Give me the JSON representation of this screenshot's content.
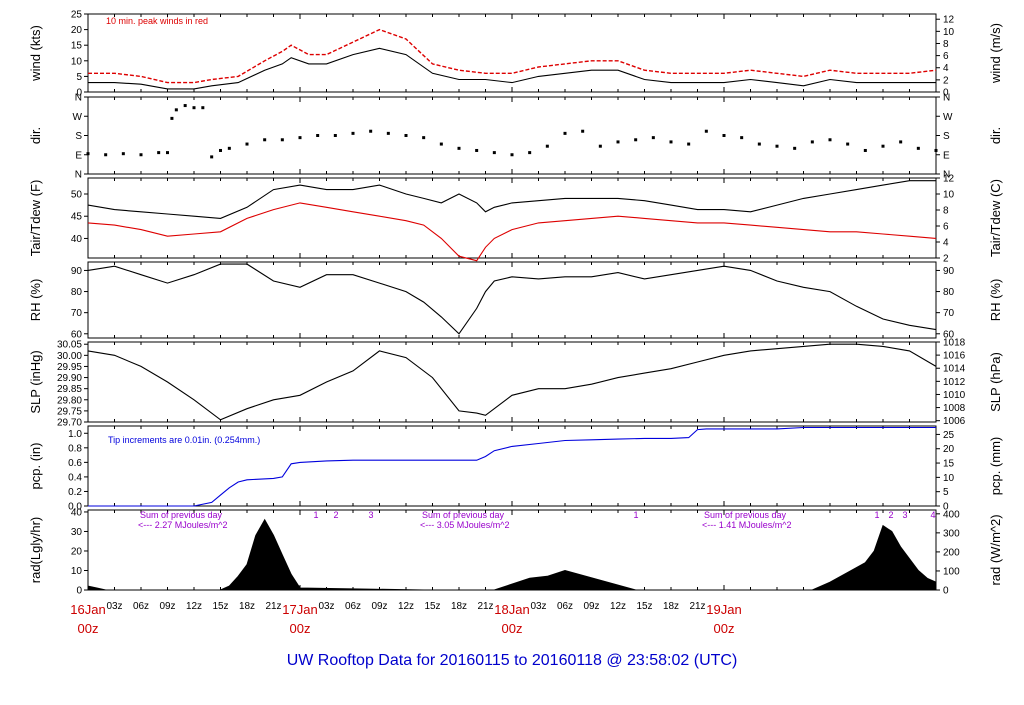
{
  "title": "UW Rooftop Data for 20160115  to  20160118 @ 23:58:02  (UTC)",
  "colors": {
    "black": "#000000",
    "red": "#dd0000",
    "blue": "#0000dd",
    "purple": "#9900cc",
    "footer": "#0000cc"
  },
  "time_axis": {
    "hour_labels": [
      "03z",
      "06z",
      "09z",
      "12z",
      "15z",
      "18z",
      "21z",
      "03z",
      "06z",
      "09z",
      "12z",
      "15z",
      "18z",
      "21z",
      "03z",
      "06z",
      "09z",
      "12z",
      "15z",
      "18z",
      "21z"
    ],
    "day_labels": [
      {
        "date": "16Jan",
        "hour": "00z"
      },
      {
        "date": "17Jan",
        "hour": "00z"
      },
      {
        "date": "18Jan",
        "hour": "00z"
      },
      {
        "date": "19Jan",
        "hour": "00z"
      }
    ]
  },
  "chart_data": [
    {
      "id": "wind",
      "type": "line",
      "ylabel": "wind (kts)",
      "ylabel_right": "wind (m/s)",
      "yticks_left": [
        "0",
        "5",
        "10",
        "15",
        "20",
        "25"
      ],
      "yticks_right": [
        "0",
        "2",
        "4",
        "6",
        "8",
        "10",
        "12"
      ],
      "annotation": "10 min. peak winds in red",
      "series": [
        {
          "color": "red",
          "x": [
            0,
            3,
            6,
            9,
            12,
            14,
            17,
            20,
            22,
            23,
            25,
            27,
            30,
            33,
            36,
            39,
            42,
            45,
            48,
            51,
            54,
            57,
            60,
            63,
            66,
            69,
            72,
            75,
            78,
            81,
            84,
            87,
            90,
            93,
            96
          ],
          "values": [
            6,
            6,
            5,
            3,
            3,
            4,
            5,
            10,
            13,
            15,
            12,
            12,
            16,
            20,
            17,
            9,
            7,
            6,
            6,
            8,
            9,
            10,
            10,
            7,
            6,
            6,
            6,
            7,
            6,
            5,
            7,
            6,
            6,
            6,
            7
          ]
        },
        {
          "color": "black",
          "x": [
            0,
            3,
            6,
            9,
            12,
            14,
            17,
            20,
            22,
            23,
            25,
            27,
            30,
            33,
            36,
            39,
            42,
            45,
            48,
            51,
            54,
            57,
            60,
            63,
            66,
            69,
            72,
            75,
            78,
            81,
            84,
            87,
            90,
            93,
            96
          ],
          "values": [
            3,
            3,
            2.5,
            1,
            1,
            2,
            3,
            7,
            9,
            11,
            9,
            9,
            12,
            14,
            12,
            6,
            4,
            4,
            3,
            5,
            6,
            7,
            7,
            4,
            3,
            3,
            3,
            4,
            3,
            2,
            4,
            3,
            3,
            3,
            3
          ]
        }
      ]
    },
    {
      "id": "dir",
      "type": "scatter",
      "ylabel": "dir.",
      "ylabel_right": "dir.",
      "yticks_left": [
        "N",
        "E",
        "S",
        "W",
        "N"
      ],
      "yticks_right": [
        "N",
        "E",
        "S",
        "W",
        "N"
      ],
      "degree_range": [
        0,
        360
      ],
      "series": [
        {
          "color": "black",
          "x": [
            0,
            2,
            4,
            6,
            8,
            9,
            9.5,
            10,
            11,
            12,
            13,
            14,
            15,
            16,
            18,
            20,
            22,
            24,
            26,
            28,
            30,
            32,
            34,
            36,
            38,
            40,
            42,
            44,
            46,
            48,
            50,
            52,
            54,
            56,
            58,
            60,
            62,
            64,
            66,
            68,
            70,
            72,
            74,
            76,
            78,
            80,
            82,
            84,
            86,
            88,
            90,
            92,
            94,
            96
          ],
          "values": [
            95,
            90,
            95,
            90,
            100,
            100,
            260,
            300,
            320,
            310,
            310,
            80,
            110,
            120,
            140,
            160,
            160,
            170,
            180,
            180,
            190,
            200,
            190,
            180,
            170,
            140,
            120,
            110,
            100,
            90,
            100,
            130,
            190,
            200,
            130,
            150,
            160,
            170,
            150,
            140,
            200,
            180,
            170,
            140,
            130,
            120,
            150,
            160,
            140,
            110,
            130,
            150,
            120,
            110
          ]
        }
      ]
    },
    {
      "id": "temp",
      "type": "line",
      "ylabel": "Tair/Tdew (F)",
      "ylabel_right": "Tair/Tdew (C)",
      "yticks_left": [
        "40",
        "45",
        "50"
      ],
      "yticks_right": [
        "2",
        "4",
        "6",
        "8",
        "10",
        "12"
      ],
      "series": [
        {
          "color": "black",
          "x": [
            0,
            3,
            6,
            9,
            12,
            15,
            18,
            21,
            24,
            27,
            30,
            33,
            36,
            38,
            40,
            42,
            44,
            45,
            46,
            48,
            51,
            54,
            57,
            60,
            63,
            66,
            69,
            72,
            75,
            78,
            81,
            84,
            87,
            90,
            93,
            96
          ],
          "values": [
            47.5,
            46.5,
            46,
            45.5,
            45,
            44.5,
            47,
            51,
            52,
            51,
            51,
            52,
            50,
            49,
            48,
            50,
            48,
            46,
            47,
            48,
            48.5,
            49,
            49,
            49,
            48.5,
            47.5,
            46.5,
            46.5,
            46,
            47.5,
            49,
            50,
            51,
            52,
            53,
            53
          ]
        },
        {
          "color": "red",
          "x": [
            0,
            3,
            6,
            9,
            12,
            15,
            18,
            21,
            24,
            27,
            30,
            33,
            36,
            38,
            40,
            42,
            44,
            45,
            46,
            48,
            51,
            54,
            57,
            60,
            63,
            66,
            69,
            72,
            75,
            78,
            81,
            84,
            87,
            90,
            93,
            96
          ],
          "values": [
            43.5,
            43,
            42,
            40.5,
            41,
            41.5,
            44.5,
            46.5,
            48,
            47,
            46,
            45,
            44,
            43,
            40,
            36,
            35,
            38,
            40,
            42,
            43.5,
            44,
            44.5,
            45,
            44.5,
            44,
            43.5,
            43.5,
            43,
            42.5,
            42,
            41.5,
            41.5,
            41,
            40.5,
            40
          ]
        }
      ]
    },
    {
      "id": "rh",
      "type": "line",
      "ylabel": "RH (%)",
      "ylabel_right": "RH (%)",
      "yticks_left": [
        "60",
        "70",
        "80",
        "90"
      ],
      "yticks_right": [
        "60",
        "70",
        "80",
        "90"
      ],
      "series": [
        {
          "color": "black",
          "x": [
            0,
            3,
            6,
            9,
            12,
            15,
            18,
            21,
            24,
            27,
            30,
            33,
            36,
            38,
            40,
            42,
            44,
            45,
            46,
            48,
            51,
            54,
            57,
            60,
            63,
            66,
            69,
            72,
            75,
            78,
            81,
            84,
            87,
            90,
            93,
            96
          ],
          "values": [
            90,
            92,
            88,
            84,
            88,
            93,
            93,
            85,
            82,
            88,
            88,
            84,
            80,
            75,
            68,
            60,
            72,
            80,
            85,
            87,
            86,
            87,
            87,
            89,
            86,
            88,
            90,
            92,
            90,
            85,
            82,
            80,
            73,
            67,
            64,
            62
          ]
        }
      ]
    },
    {
      "id": "slp",
      "type": "line",
      "ylabel": "SLP (inHg)",
      "ylabel_right": "SLP (hPa)",
      "yticks_left": [
        "29.70",
        "29.75",
        "29.80",
        "29.85",
        "29.90",
        "29.95",
        "30.00",
        "30.05"
      ],
      "yticks_right": [
        "1006",
        "1008",
        "1010",
        "1012",
        "1014",
        "1016",
        "1018"
      ],
      "series": [
        {
          "color": "black",
          "x": [
            0,
            3,
            6,
            9,
            12,
            15,
            18,
            21,
            24,
            27,
            30,
            33,
            36,
            39,
            42,
            44,
            45,
            48,
            51,
            54,
            57,
            60,
            63,
            66,
            69,
            72,
            75,
            78,
            81,
            84,
            87,
            90,
            93,
            96
          ],
          "values": [
            30.02,
            30.0,
            29.95,
            29.88,
            29.8,
            29.71,
            29.76,
            29.8,
            29.82,
            29.88,
            29.93,
            30.02,
            29.99,
            29.9,
            29.75,
            29.74,
            29.73,
            29.82,
            29.85,
            29.85,
            29.87,
            29.9,
            29.92,
            29.94,
            29.97,
            30.0,
            30.02,
            30.03,
            30.04,
            30.05,
            30.05,
            30.04,
            30.02,
            29.95
          ]
        }
      ]
    },
    {
      "id": "pcp",
      "type": "line",
      "ylabel": "pcp. (in)",
      "ylabel_right": "pcp. (mm)",
      "yticks_left": [
        "0.0",
        "0.2",
        "0.4",
        "0.6",
        "0.8",
        "1.0"
      ],
      "yticks_right": [
        "0",
        "5",
        "10",
        "15",
        "20",
        "25"
      ],
      "annotation": "Tip increments are 0.01in. (0.254mm.)",
      "series": [
        {
          "color": "blue",
          "x": [
            0,
            12,
            14,
            15,
            16,
            17,
            18,
            21,
            22,
            23,
            24,
            27,
            30,
            33,
            36,
            40,
            42,
            44,
            45,
            46,
            48,
            51,
            54,
            57,
            60,
            63,
            66,
            68,
            69,
            70,
            72,
            75,
            78,
            81,
            84,
            87,
            90,
            93,
            96
          ],
          "values": [
            0,
            0,
            0.05,
            0.15,
            0.25,
            0.33,
            0.36,
            0.38,
            0.4,
            0.58,
            0.6,
            0.62,
            0.63,
            0.63,
            0.63,
            0.63,
            0.63,
            0.63,
            0.68,
            0.76,
            0.82,
            0.86,
            0.9,
            0.91,
            0.92,
            0.93,
            0.93,
            0.94,
            1.05,
            1.06,
            1.06,
            1.06,
            1.06,
            1.08,
            1.08,
            1.08,
            1.08,
            1.08,
            1.08
          ]
        }
      ]
    },
    {
      "id": "rad",
      "type": "area",
      "ylabel": "rad(Lgly/hr)",
      "ylabel_right": "rad (W/m^2)",
      "yticks_left": [
        "0",
        "10",
        "20",
        "30",
        "40"
      ],
      "yticks_right": [
        "0",
        "100",
        "200",
        "300",
        "400"
      ],
      "daily_sums": [
        {
          "line1": "Sum of previous day",
          "line2": "<--- 2.27 MJoules/m^2"
        },
        {
          "line1": "Sum of previous day",
          "line2": "<--- 3.05 MJoules/m^2"
        },
        {
          "line1": "Sum of previous day",
          "line2": "<--- 1.41 MJoules/m^2"
        }
      ],
      "markers": [
        "1",
        "2",
        "3",
        "1",
        "1",
        "2",
        "3",
        "4"
      ],
      "series": [
        {
          "color": "black",
          "x": [
            0,
            1,
            2,
            14,
            15,
            16,
            17,
            18,
            19,
            20,
            21,
            22,
            23,
            24,
            38,
            40,
            42,
            44,
            45,
            46,
            48,
            50,
            52,
            54,
            58,
            62,
            64,
            66,
            68,
            70,
            80,
            82,
            84,
            86,
            88,
            89,
            90,
            91,
            92,
            93,
            94,
            95,
            96
          ],
          "values": [
            2,
            1,
            0,
            0,
            0,
            2,
            7,
            13,
            28,
            36,
            28,
            18,
            8,
            1,
            0,
            0,
            0,
            0,
            0,
            0,
            3,
            6,
            7,
            10,
            5,
            0,
            0,
            0,
            0,
            0,
            0,
            0,
            4,
            9,
            14,
            20,
            33,
            30,
            22,
            16,
            10,
            6,
            4
          ]
        }
      ]
    }
  ]
}
